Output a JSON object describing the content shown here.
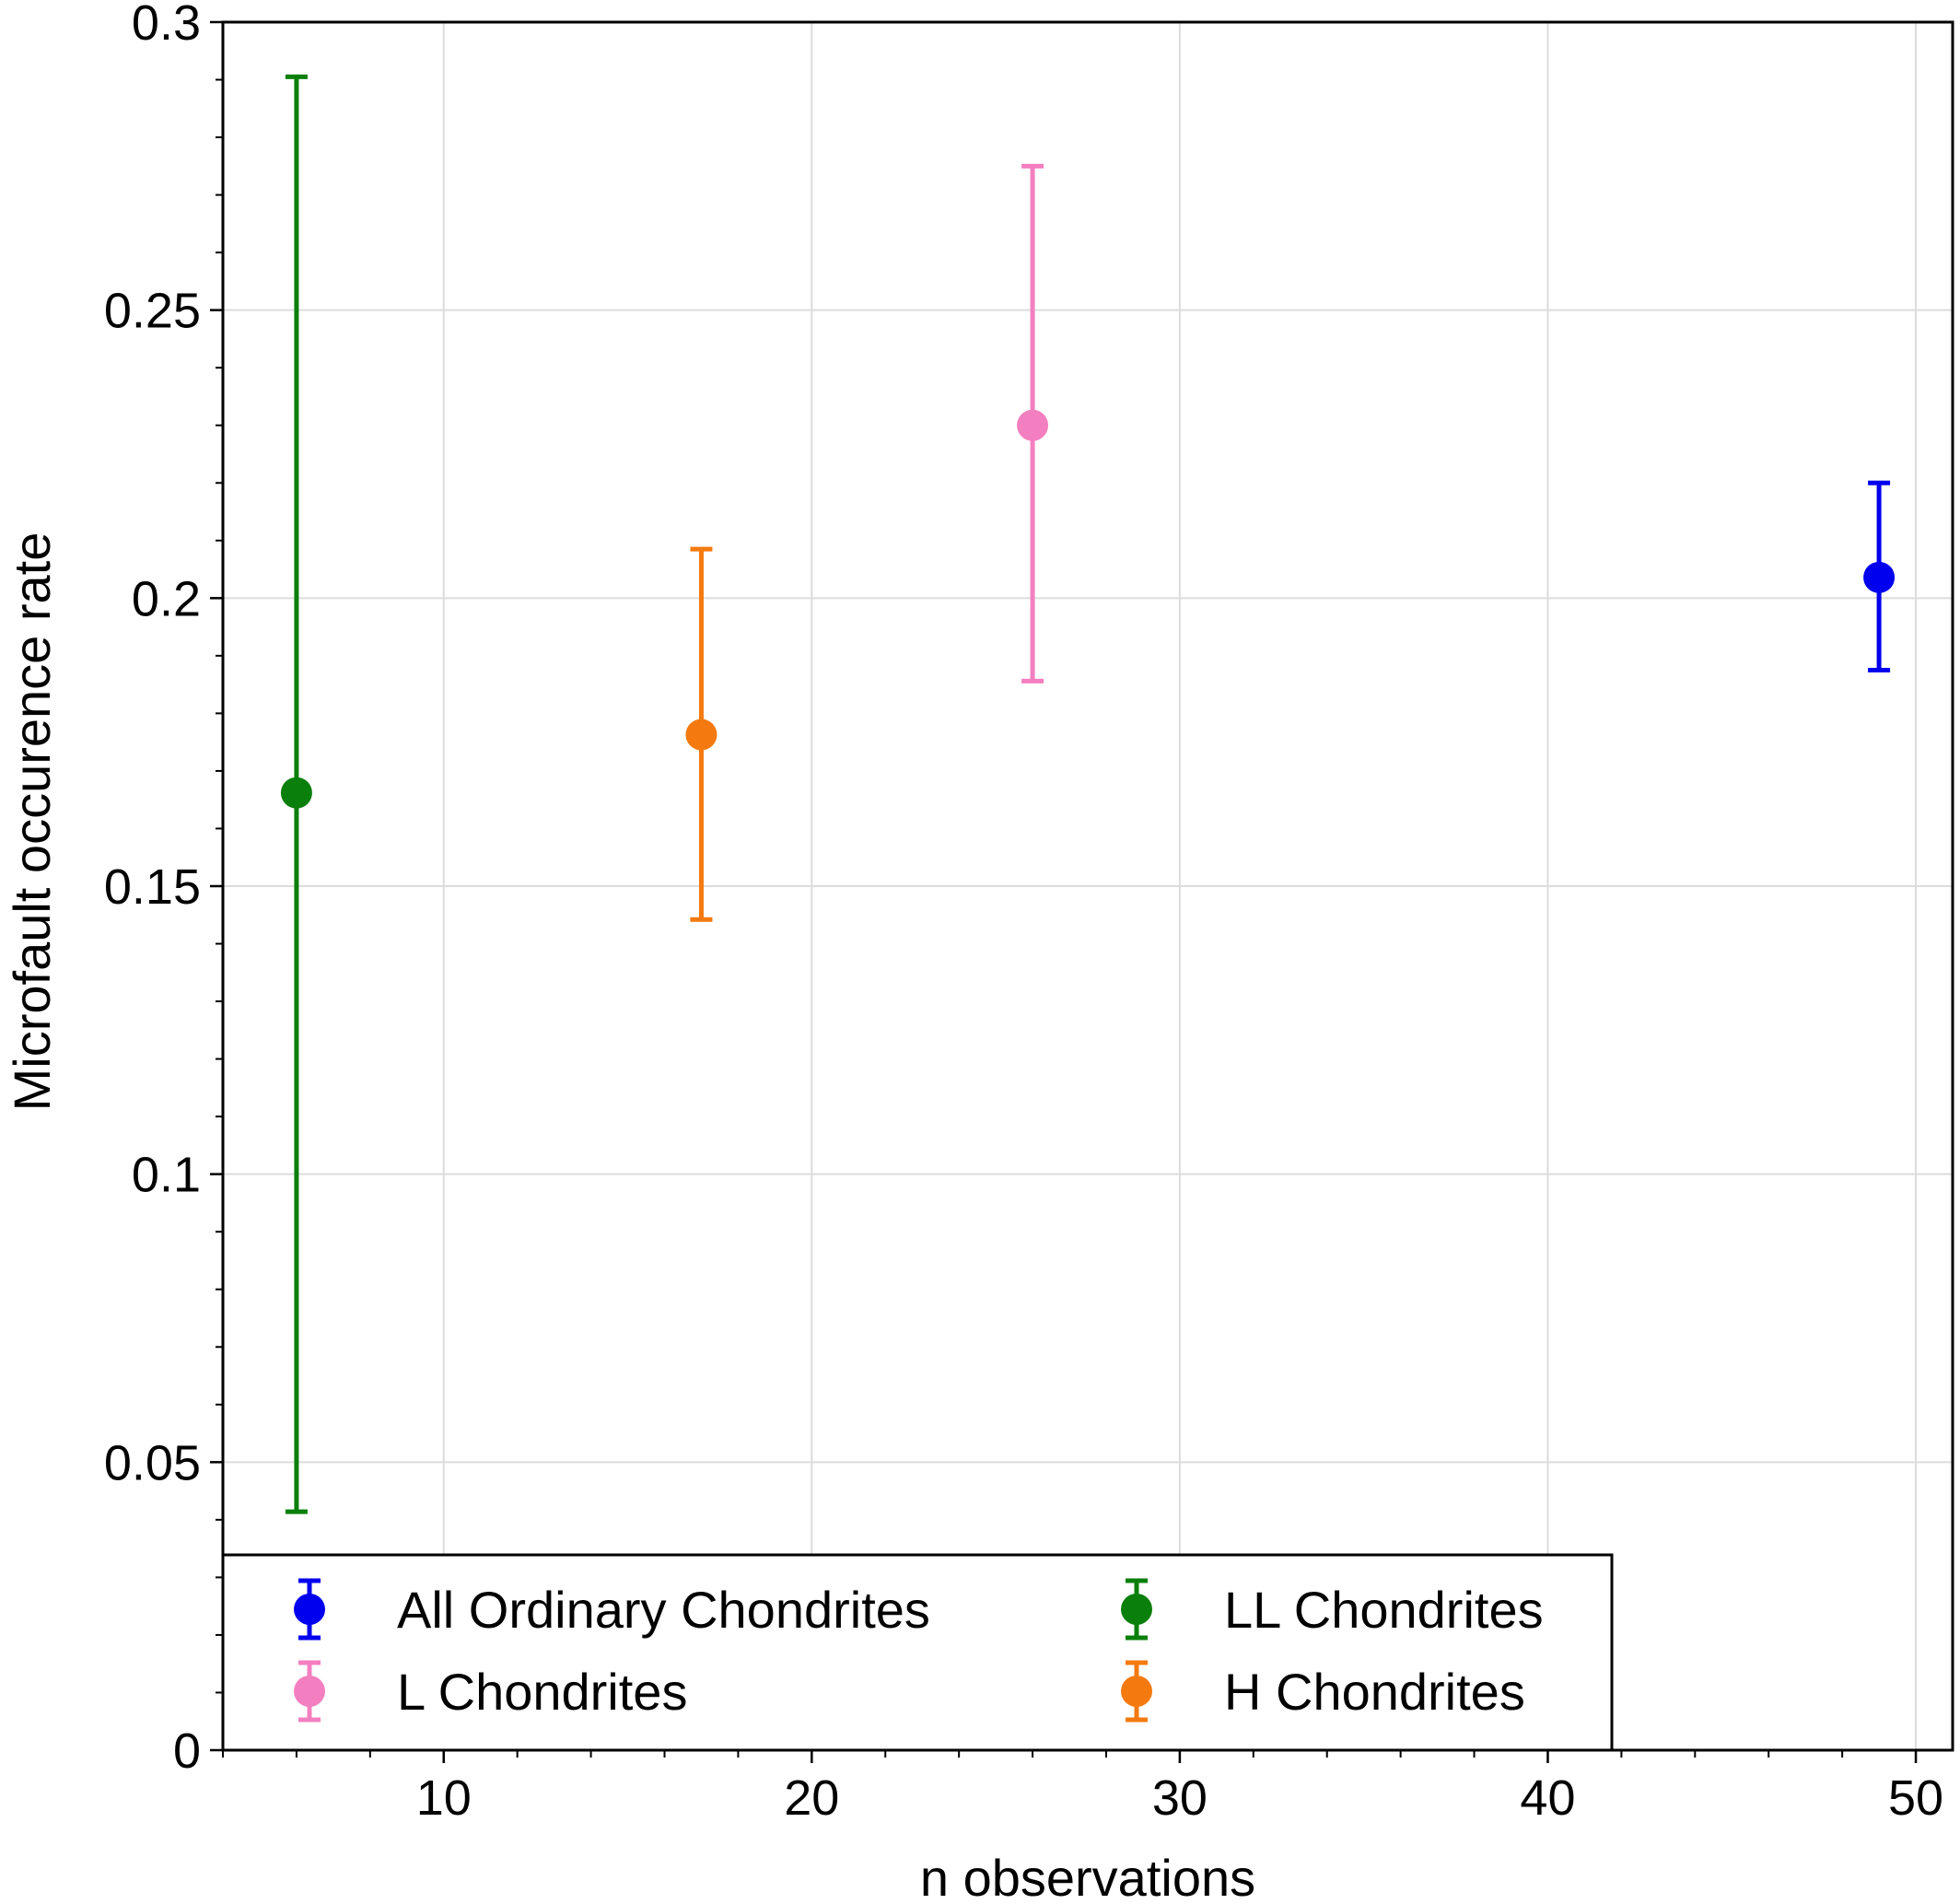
{
  "chart_data": {
    "type": "scatter",
    "title": "",
    "xlabel": "n observations",
    "ylabel": "Microfault occurence rate",
    "xlim": [
      4,
      51
    ],
    "ylim": [
      0,
      0.3
    ],
    "xticks": [
      10,
      20,
      30,
      40,
      50
    ],
    "xtick_labels": [
      "10",
      "20",
      "30",
      "40",
      "50"
    ],
    "yticks": [
      0,
      0.05,
      0.1,
      0.15,
      0.2,
      0.25,
      0.3
    ],
    "ytick_labels": [
      "0",
      "0.05",
      "0.1",
      "0.15",
      "0.2",
      "0.25",
      "0.3"
    ],
    "grid": true,
    "legend_position": "lower-left",
    "series": [
      {
        "name": "All Ordinary Chondrites",
        "color": "#0000ee",
        "x": [
          49
        ],
        "y": [
          0.2036
        ],
        "err_low": [
          0.1875
        ],
        "err_high": [
          0.22
        ]
      },
      {
        "name": "LL Chondrites",
        "color": "#0b7f0b",
        "x": [
          6
        ],
        "y": [
          0.1662
        ],
        "err_low": [
          0.0414
        ],
        "err_high": [
          0.2905
        ]
      },
      {
        "name": "L Chondrites",
        "color": "#f47fc0",
        "x": [
          26
        ],
        "y": [
          0.23
        ],
        "err_low": [
          0.1856
        ],
        "err_high": [
          0.275
        ]
      },
      {
        "name": "H Chondrites",
        "color": "#f47a10",
        "x": [
          17
        ],
        "y": [
          0.1763
        ],
        "err_low": [
          0.1442
        ],
        "err_high": [
          0.2085
        ]
      }
    ],
    "legend_order": [
      0,
      1,
      2,
      3
    ]
  }
}
